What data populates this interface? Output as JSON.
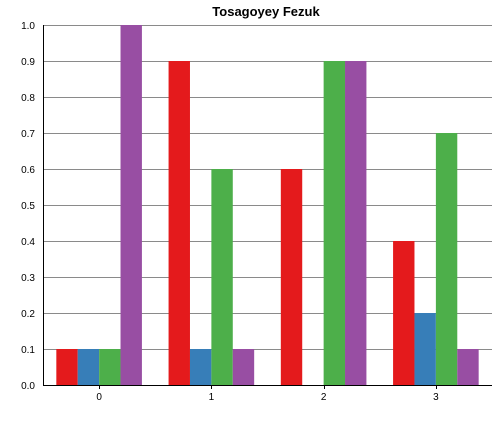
{
  "chart_data": {
    "type": "bar",
    "title": "Tosagoyey Fezuk",
    "xlabel": "",
    "ylabel": "",
    "categories": [
      "0",
      "1",
      "2",
      "3"
    ],
    "ylim": [
      0,
      1.0
    ],
    "yticks": [
      "0.0",
      "0.1",
      "0.2",
      "0.3",
      "0.4",
      "0.5",
      "0.6",
      "0.7",
      "0.8",
      "0.9",
      "1.0"
    ],
    "grid": true,
    "legend": "none",
    "series": [
      {
        "color": "#e41a1c",
        "values": [
          0.1,
          0.9,
          0.6,
          0.4
        ]
      },
      {
        "color": "#377eb8",
        "values": [
          0.1,
          0.1,
          0.0,
          0.2
        ]
      },
      {
        "color": "#4daf4a",
        "values": [
          0.1,
          0.6,
          0.9,
          0.7
        ]
      },
      {
        "color": "#984ea3",
        "values": [
          1.0,
          0.1,
          0.9,
          0.1
        ]
      }
    ]
  }
}
